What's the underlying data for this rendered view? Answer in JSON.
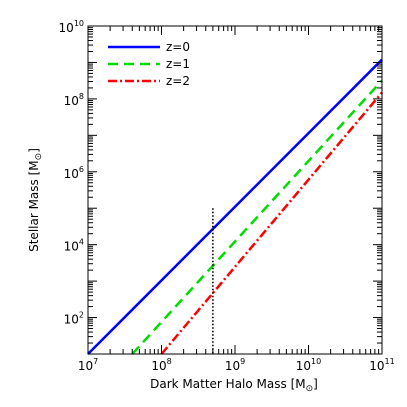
{
  "chart_data": {
    "type": "line",
    "xlabel": "Dark Matter Halo Mass [M",
    "xlabel_suffix": "]",
    "ylabel": "Stellar Mass [M",
    "ylabel_suffix": "]",
    "sun_symbol": "⊙",
    "x_scale": "log",
    "y_scale": "log",
    "xlim": [
      10000000.0,
      100000000000.0
    ],
    "ylim": [
      10,
      10000000000.0
    ],
    "x_ticks": [
      {
        "exp": 7,
        "base": "10",
        "sup": "7"
      },
      {
        "exp": 8,
        "base": "10",
        "sup": "8"
      },
      {
        "exp": 9,
        "base": "10",
        "sup": "9"
      },
      {
        "exp": 10,
        "base": "10",
        "sup": "10"
      },
      {
        "exp": 11,
        "base": "10",
        "sup": "11"
      }
    ],
    "y_ticks": [
      {
        "exp": 2,
        "base": "10",
        "sup": "2"
      },
      {
        "exp": 4,
        "base": "10",
        "sup": "4"
      },
      {
        "exp": 6,
        "base": "10",
        "sup": "6"
      },
      {
        "exp": 8,
        "base": "10",
        "sup": "8"
      },
      {
        "exp": 10,
        "base": "10",
        "sup": "10"
      }
    ],
    "grid": false,
    "legend_position": "top-left",
    "series": [
      {
        "name": "z=0",
        "color": "#0000ff",
        "dash": "solid",
        "x": [
          10000000.0,
          100000000000.0
        ],
        "y": [
          10,
          1200000000.0
        ]
      },
      {
        "name": "z=1",
        "color": "#00dd00",
        "dash": "dashed",
        "x": [
          40000000.0,
          100000000000.0
        ],
        "y": [
          10,
          320000000.0
        ]
      },
      {
        "name": "z=2",
        "color": "#ff0000",
        "dash": "dashdot",
        "x": [
          100000000.0,
          100000000000.0
        ],
        "y": [
          10,
          150000000.0
        ]
      }
    ],
    "vline": {
      "x": 500000000.0,
      "y_top": 100000.0,
      "color": "#000000",
      "dash": "dotted"
    }
  }
}
